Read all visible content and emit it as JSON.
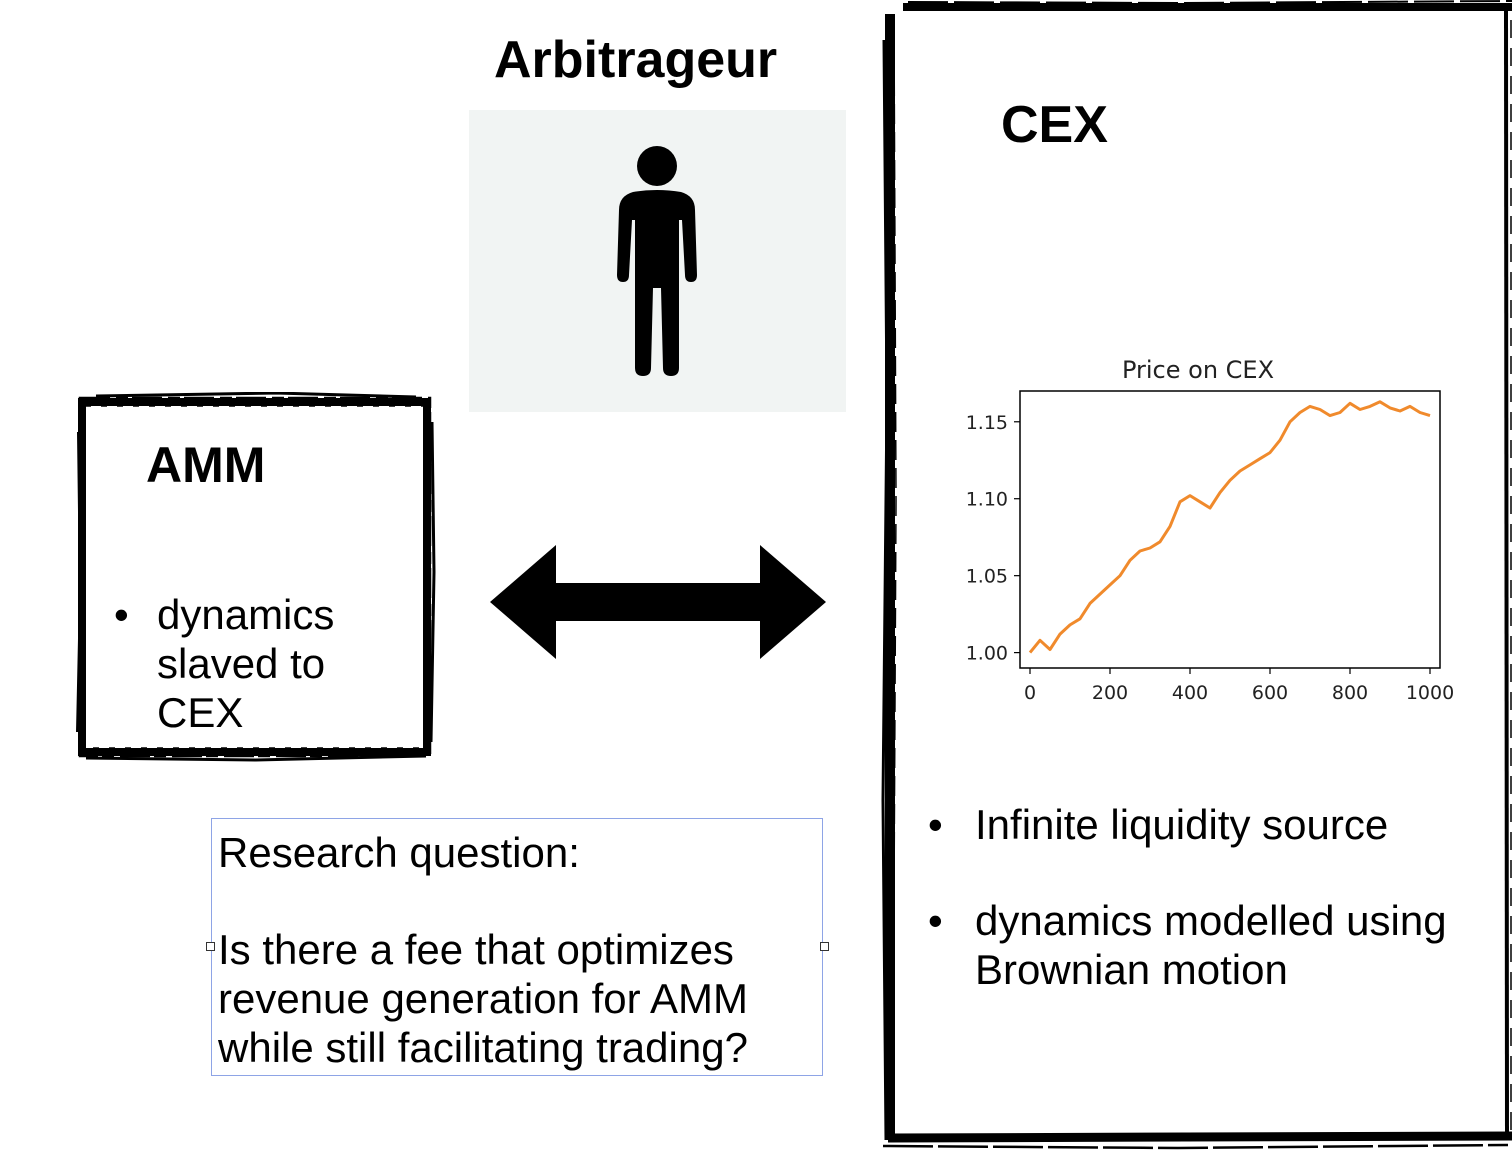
{
  "arbitrageur": {
    "title": "Arbitrageur",
    "icon": "person-icon",
    "icon_bg": "#f1f4f3"
  },
  "amm": {
    "title": "AMM",
    "bullets": [
      "dynamics slaved to CEX"
    ]
  },
  "arrow": {
    "icon": "double-arrow-icon"
  },
  "research": {
    "heading": "Research question:",
    "body": "Is there a  fee that optimizes revenue generation for AMM while still facilitating trading?",
    "border_color": "#8ea4e6"
  },
  "cex": {
    "title": "CEX",
    "bullets": [
      "Infinite liquidity source",
      "dynamics modelled using Brownian motion"
    ]
  },
  "chart_data": {
    "type": "line",
    "title": "Price on CEX",
    "xlabel": "",
    "ylabel": "",
    "xlim": [
      -25,
      1025
    ],
    "ylim": [
      0.99,
      1.17
    ],
    "xticks": [
      0,
      200,
      400,
      600,
      800,
      1000
    ],
    "xtick_labels": [
      "0",
      "200",
      "400",
      "600",
      "800",
      "1000"
    ],
    "yticks": [
      1.0,
      1.05,
      1.1,
      1.15
    ],
    "ytick_labels": [
      "1.00",
      "1.05",
      "1.10",
      "1.15"
    ],
    "grid": false,
    "line_color": "#f08a2c",
    "series": [
      {
        "x": [
          0,
          25,
          50,
          75,
          100,
          125,
          150,
          175,
          200,
          225,
          250,
          275,
          300,
          325,
          350,
          375,
          400,
          425,
          450,
          475,
          500,
          525,
          550,
          575,
          600,
          625,
          650,
          675,
          700,
          725,
          750,
          775,
          800,
          825,
          850,
          875,
          900,
          925,
          950,
          975,
          1000
        ],
        "values": [
          1.0,
          1.008,
          1.002,
          1.012,
          1.018,
          1.022,
          1.032,
          1.038,
          1.044,
          1.05,
          1.06,
          1.066,
          1.068,
          1.072,
          1.082,
          1.098,
          1.102,
          1.098,
          1.094,
          1.104,
          1.112,
          1.118,
          1.122,
          1.126,
          1.13,
          1.138,
          1.15,
          1.156,
          1.16,
          1.158,
          1.154,
          1.156,
          1.162,
          1.158,
          1.16,
          1.163,
          1.159,
          1.157,
          1.16,
          1.156,
          1.154
        ]
      }
    ]
  }
}
